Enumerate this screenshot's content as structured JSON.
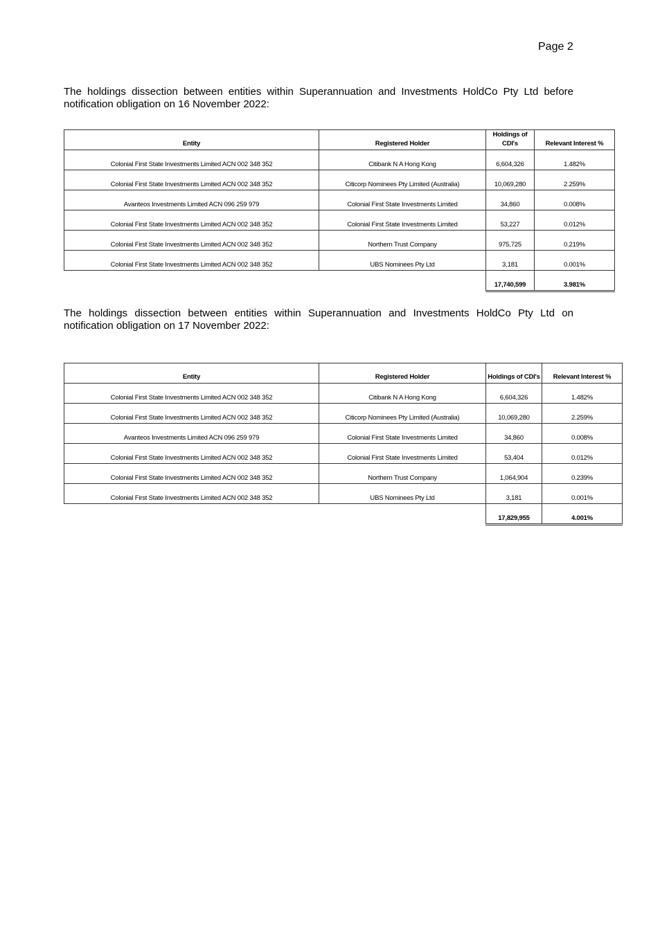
{
  "page_label": "Page 2",
  "sections": [
    {
      "intro": "The holdings dissection between entities within Superannuation and Investments HoldCo Pty Ltd before notification obligation on 16 November 2022:",
      "headers": [
        "Entity",
        "Registered Holder",
        "Holdings of CDI's",
        "Relevant Interest %"
      ],
      "rows": [
        [
          "Colonial First State Investments Limited ACN 002 348 352",
          "Citibank N A Hong Kong",
          "6,604,326",
          "1.482%"
        ],
        [
          "Colonial First State Investments Limited ACN 002 348 352",
          "Citicorp Nominees Pty Limited (Australia)",
          "10,069,280",
          "2.259%"
        ],
        [
          "Avanteos Investments Limited ACN 096 259 979",
          "Colonial First State Investments Limited",
          "34,860",
          "0.008%"
        ],
        [
          "Colonial First State Investments Limited ACN 002 348 352",
          "Colonial First State Investments Limited",
          "53,227",
          "0.012%"
        ],
        [
          "Colonial First State Investments Limited ACN 002 348 352",
          "Northern Trust Company",
          "975,725",
          "0.219%"
        ],
        [
          "Colonial First State Investments Limited ACN 002 348 352",
          "UBS Nominees Pty Ltd",
          "3,181",
          "0.001%"
        ]
      ],
      "total_holdings": "17,740,599",
      "total_interest": "3.981%"
    },
    {
      "intro": "The holdings dissection between entities within Superannuation and Investments HoldCo Pty Ltd on notification obligation on 17 November 2022:",
      "headers": [
        "Entity",
        "Registered Holder",
        "Holdings of CDI's",
        "Relevant Interest %"
      ],
      "rows": [
        [
          "Colonial First State Investments Limited ACN 002 348 352",
          "Citibank N A Hong Kong",
          "6,604,326",
          "1.482%"
        ],
        [
          "Colonial First State Investments Limited ACN 002 348 352",
          "Citicorp Nominees Pty Limited (Australia)",
          "10,069,280",
          "2.259%"
        ],
        [
          "Avanteos Investments Limited ACN 096 259 979",
          "Colonial First State Investments Limited",
          "34,860",
          "0.008%"
        ],
        [
          "Colonial First State Investments Limited ACN 002 348 352",
          "Colonial First State Investments Limited",
          "53,404",
          "0.012%"
        ],
        [
          "Colonial First State Investments Limited ACN 002 348 352",
          "Northern Trust Company",
          "1,064,904",
          "0.239%"
        ],
        [
          "Colonial First State Investments Limited ACN 002 348 352",
          "UBS Nominees Pty Ltd",
          "3,181",
          "0.001%"
        ]
      ],
      "total_holdings": "17,829,955",
      "total_interest": "4.001%"
    }
  ]
}
